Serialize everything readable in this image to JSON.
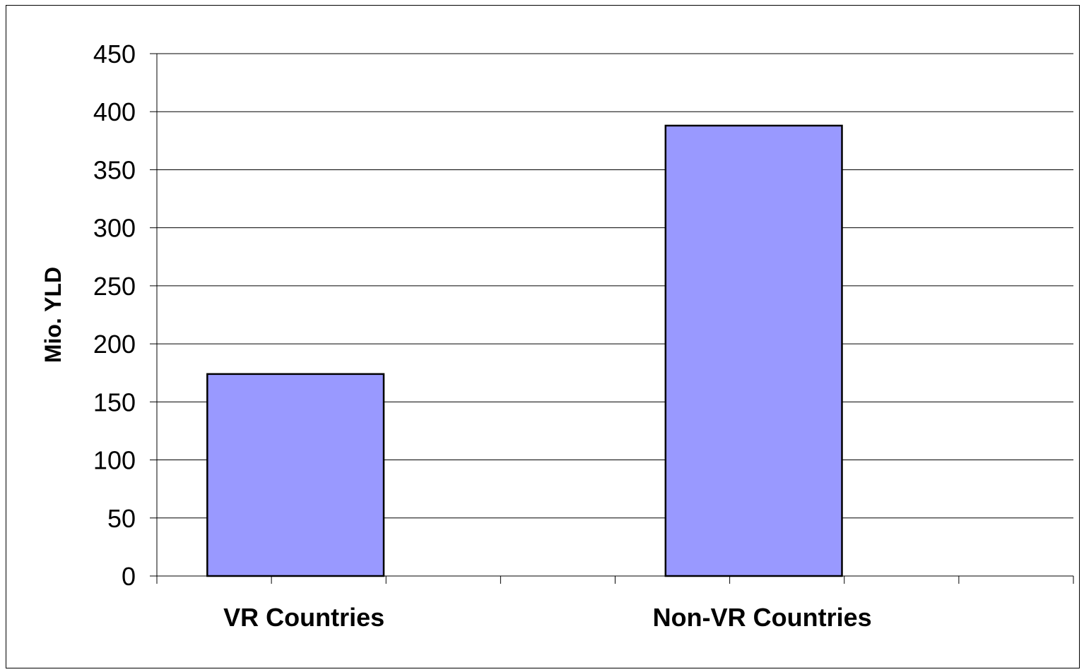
{
  "chart_data": {
    "type": "bar",
    "title": "",
    "xlabel": "",
    "ylabel": "Mio. YLD",
    "categories": [
      "VR Countries",
      "Non-VR Countries"
    ],
    "values": [
      174,
      388
    ],
    "ylim": [
      0,
      450
    ],
    "yticks": [
      0,
      50,
      100,
      150,
      200,
      250,
      300,
      350,
      400,
      450
    ],
    "grid": true,
    "legend": "none",
    "colors": {
      "bar_fill": "#9999FF",
      "bar_stroke": "#000000",
      "grid": "#000000"
    }
  }
}
